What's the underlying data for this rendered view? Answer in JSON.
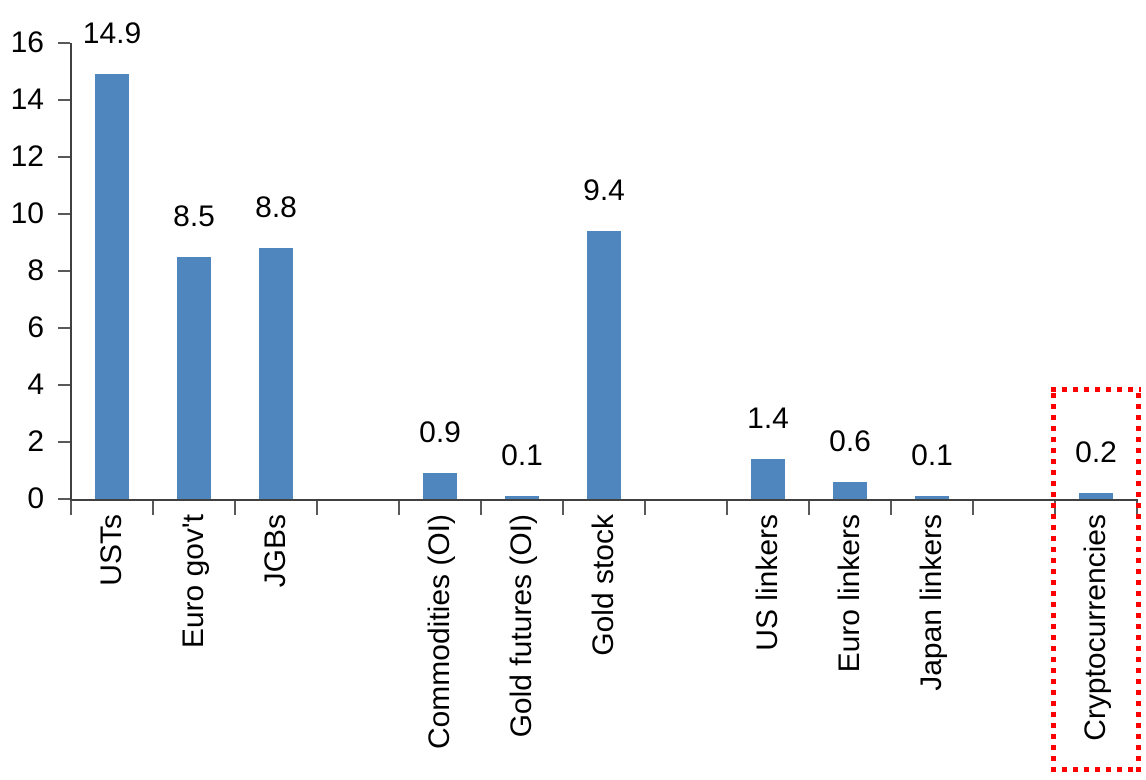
{
  "chart_data": {
    "type": "bar",
    "title": "",
    "xlabel": "",
    "ylabel": "",
    "ylim": [
      0,
      16
    ],
    "y_ticks": [
      0,
      2,
      4,
      6,
      8,
      10,
      12,
      14,
      16
    ],
    "grid": "off",
    "legend": "none",
    "categories": [
      "USTs",
      "Euro gov't",
      "JGBs",
      "",
      "Commodities (OI)",
      "Gold futures (OI)",
      "Gold stock",
      "",
      "US linkers",
      "Euro linkers",
      "Japan linkers",
      "",
      "Cryptocurrencies"
    ],
    "values": [
      14.9,
      8.5,
      8.8,
      null,
      0.9,
      0.1,
      9.4,
      null,
      1.4,
      0.6,
      0.1,
      null,
      0.2
    ],
    "value_labels": [
      "14.9",
      "8.5",
      "8.8",
      null,
      "0.9",
      "0.1",
      "9.4",
      null,
      "1.4",
      "0.6",
      "0.1",
      null,
      "0.2"
    ],
    "colors": {
      "bar": "#4E86BD",
      "axis": "#404040",
      "tick": "#595959",
      "text": "#000000",
      "highlight": "#FF0000"
    },
    "highlight_box": {
      "category": "Cryptocurrencies",
      "style": "dotted",
      "color": "#FF0000"
    }
  }
}
